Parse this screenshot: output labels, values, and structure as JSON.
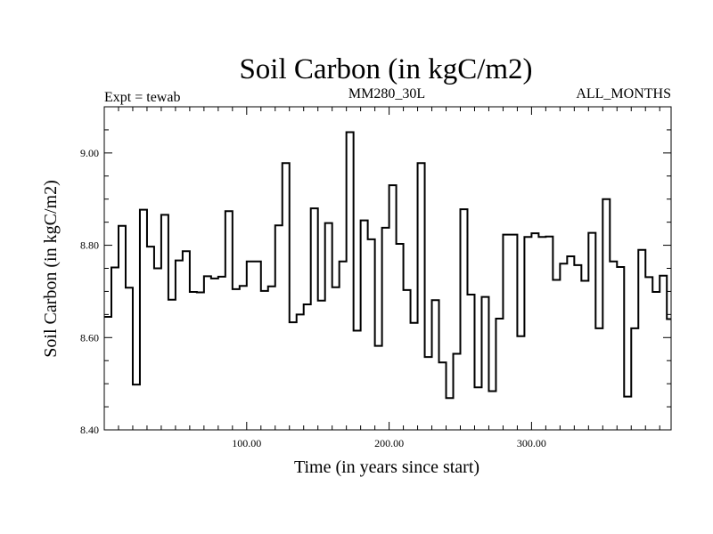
{
  "chart_data": {
    "type": "line",
    "step": true,
    "title": "Soil Carbon (in kgC/m2)",
    "subtitle_left": "Expt = tewab",
    "subtitle_center": "MM280_30L",
    "subtitle_right": "ALL_MONTHS",
    "xlabel": "Time (in years since start)",
    "ylabel": "Soil Carbon (in kgC/m2)",
    "xlim": [
      0,
      398
    ],
    "ylim": [
      8.4,
      9.1
    ],
    "xticks": [
      100,
      200,
      300
    ],
    "xtick_labels": [
      "100.00",
      "200.00",
      "300.00"
    ],
    "yticks": [
      8.4,
      8.6,
      8.8,
      9.0
    ],
    "ytick_labels": [
      "8.40",
      "8.60",
      "8.80",
      "9.00"
    ],
    "grid": false,
    "series": [
      {
        "x": [
          0,
          5,
          10,
          15,
          20,
          25,
          30,
          35,
          40,
          45,
          50,
          55,
          60,
          65,
          70,
          75,
          80,
          85,
          90,
          95,
          100,
          105,
          110,
          115,
          120,
          125,
          130,
          135,
          140,
          145,
          150,
          155,
          160,
          165,
          170,
          175,
          180,
          185,
          190,
          195,
          200,
          205,
          210,
          215,
          220,
          225,
          230,
          235,
          240,
          245,
          250,
          255,
          260,
          265,
          270,
          275,
          280,
          285,
          290,
          295,
          300,
          305,
          310,
          315,
          320,
          325,
          330,
          335,
          340,
          345,
          350,
          355,
          360,
          365,
          370,
          375,
          380,
          385,
          390,
          395,
          398
        ],
        "values": [
          8.645,
          8.752,
          8.842,
          8.708,
          8.498,
          8.877,
          8.797,
          8.75,
          8.866,
          8.682,
          8.767,
          8.787,
          8.699,
          8.698,
          8.733,
          8.728,
          8.732,
          8.874,
          8.705,
          8.712,
          8.765,
          8.765,
          8.701,
          8.711,
          8.843,
          8.978,
          8.633,
          8.65,
          8.672,
          8.88,
          8.68,
          8.848,
          8.709,
          8.765,
          9.045,
          8.615,
          8.854,
          8.813,
          8.582,
          8.838,
          8.93,
          8.803,
          8.703,
          8.632,
          8.978,
          8.558,
          8.681,
          8.546,
          8.469,
          8.565,
          8.878,
          8.693,
          8.492,
          8.688,
          8.484,
          8.641,
          8.823,
          8.823,
          8.603,
          8.818,
          8.826,
          8.818,
          8.819,
          8.725,
          8.76,
          8.776,
          8.757,
          8.723,
          8.827,
          8.62,
          8.9,
          8.765,
          8.753,
          8.472,
          8.62,
          8.79,
          8.731,
          8.699,
          8.734,
          8.64,
          8.64
        ]
      }
    ]
  }
}
